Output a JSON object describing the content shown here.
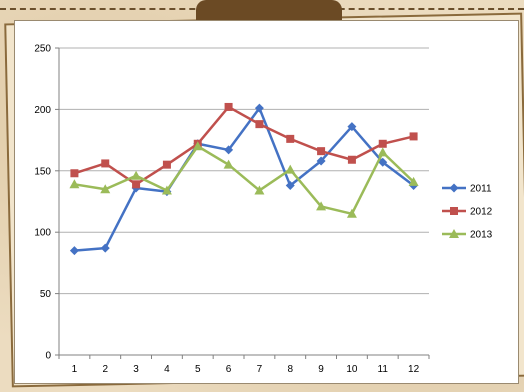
{
  "chart_data": {
    "type": "line",
    "title": "",
    "xlabel": "",
    "ylabel": "",
    "categories": [
      "1",
      "2",
      "3",
      "4",
      "5",
      "6",
      "7",
      "8",
      "9",
      "10",
      "11",
      "12"
    ],
    "ylim": [
      0,
      250
    ],
    "yticks": [
      0,
      50,
      100,
      150,
      200,
      250
    ],
    "grid": true,
    "legend_position": "right",
    "series": [
      {
        "name": "2011",
        "color": "#4472c4",
        "marker": "diamond",
        "values": [
          85,
          87,
          136,
          133,
          172,
          167,
          201,
          138,
          158,
          186,
          157,
          138
        ]
      },
      {
        "name": "2012",
        "color": "#c0504d",
        "marker": "square",
        "values": [
          148,
          156,
          139,
          155,
          172,
          202,
          188,
          176,
          166,
          159,
          172,
          178
        ]
      },
      {
        "name": "2013",
        "color": "#9bbb59",
        "marker": "triangle",
        "values": [
          139,
          135,
          146,
          134,
          170,
          155,
          134,
          151,
          121,
          115,
          165,
          141
        ]
      }
    ]
  }
}
